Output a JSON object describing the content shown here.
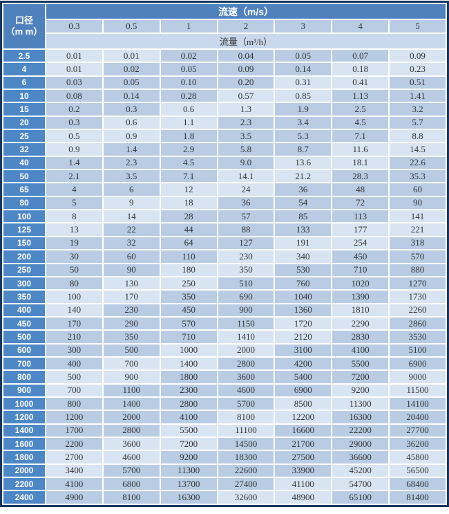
{
  "colors": {
    "outer_border": "#17375e",
    "header_blue": "#4f81bd",
    "row_header_blue": "#4e87c5",
    "cell_light_blue": "#b9cce4",
    "cell_lighter_blue": "#d9e4f2",
    "flow_band_blue": "#c9d8ec",
    "grid_line": "#ffffff",
    "text_dark": "#333333",
    "text_white": "#ffffff"
  },
  "chart_data": {
    "type": "table",
    "corner_header_line1": "口径",
    "corner_header_line2": "（m m）",
    "velocity_header": "流速（m/s）",
    "flow_header": "流量（m³/h）",
    "velocity_unit": "m/s",
    "flow_unit": "m³/h",
    "velocities": [
      "0.3",
      "0.5",
      "1",
      "2",
      "3",
      "4",
      "5"
    ],
    "rows": [
      {
        "diameter": "2.5",
        "flows": [
          "0.01",
          "0.01",
          "0.02",
          "0.04",
          "0.05",
          "0.07",
          "0.09"
        ]
      },
      {
        "diameter": "4",
        "flows": [
          "0.01",
          "0.02",
          "0.05",
          "0.09",
          "0.14",
          "0.18",
          "0.23"
        ]
      },
      {
        "diameter": "6",
        "flows": [
          "0.03",
          "0.05",
          "0.10",
          "0.20",
          "0.31",
          "0.41",
          "0.51"
        ]
      },
      {
        "diameter": "10",
        "flows": [
          "0.08",
          "0.14",
          "0.28",
          "0.57",
          "0.85",
          "1.13",
          "1.41"
        ]
      },
      {
        "diameter": "15",
        "flows": [
          "0.2",
          "0.3",
          "0.6",
          "1.3",
          "1.9",
          "2.5",
          "3.2"
        ]
      },
      {
        "diameter": "20",
        "flows": [
          "0.3",
          "0.6",
          "1.1",
          "2.3",
          "3.4",
          "4.5",
          "5.7"
        ]
      },
      {
        "diameter": "25",
        "flows": [
          "0.5",
          "0.9",
          "1.8",
          "3.5",
          "5.3",
          "7.1",
          "8.8"
        ]
      },
      {
        "diameter": "32",
        "flows": [
          "0.9",
          "1.4",
          "2.9",
          "5.8",
          "8.7",
          "11.6",
          "14.5"
        ]
      },
      {
        "diameter": "40",
        "flows": [
          "1.4",
          "2.3",
          "4.5",
          "9.0",
          "13.6",
          "18.1",
          "22.6"
        ]
      },
      {
        "diameter": "50",
        "flows": [
          "2.1",
          "3.5",
          "7.1",
          "14.1",
          "21.2",
          "28.3",
          "35.3"
        ]
      },
      {
        "diameter": "65",
        "flows": [
          "4",
          "6",
          "12",
          "24",
          "36",
          "48",
          "60"
        ]
      },
      {
        "diameter": "80",
        "flows": [
          "5",
          "9",
          "18",
          "36",
          "54",
          "72",
          "90"
        ]
      },
      {
        "diameter": "100",
        "flows": [
          "8",
          "14",
          "28",
          "57",
          "85",
          "113",
          "141"
        ]
      },
      {
        "diameter": "125",
        "flows": [
          "13",
          "22",
          "44",
          "88",
          "133",
          "177",
          "221"
        ]
      },
      {
        "diameter": "150",
        "flows": [
          "19",
          "32",
          "64",
          "127",
          "191",
          "254",
          "318"
        ]
      },
      {
        "diameter": "200",
        "flows": [
          "30",
          "60",
          "110",
          "230",
          "340",
          "450",
          "570"
        ]
      },
      {
        "diameter": "250",
        "flows": [
          "50",
          "90",
          "180",
          "350",
          "530",
          "710",
          "880"
        ]
      },
      {
        "diameter": "300",
        "flows": [
          "80",
          "130",
          "250",
          "510",
          "760",
          "1020",
          "1270"
        ]
      },
      {
        "diameter": "350",
        "flows": [
          "100",
          "170",
          "350",
          "690",
          "1040",
          "1390",
          "1730"
        ]
      },
      {
        "diameter": "400",
        "flows": [
          "140",
          "230",
          "450",
          "900",
          "1360",
          "1810",
          "2260"
        ]
      },
      {
        "diameter": "450",
        "flows": [
          "170",
          "290",
          "570",
          "1150",
          "1720",
          "2290",
          "2860"
        ]
      },
      {
        "diameter": "500",
        "flows": [
          "210",
          "350",
          "710",
          "1410",
          "2120",
          "2830",
          "3530"
        ]
      },
      {
        "diameter": "600",
        "flows": [
          "300",
          "500",
          "1000",
          "2000",
          "3100",
          "4100",
          "5100"
        ]
      },
      {
        "diameter": "700",
        "flows": [
          "400",
          "700",
          "1400",
          "2800",
          "4200",
          "5500",
          "6900"
        ]
      },
      {
        "diameter": "800",
        "flows": [
          "500",
          "900",
          "1800",
          "3600",
          "5400",
          "7200",
          "9000"
        ]
      },
      {
        "diameter": "900",
        "flows": [
          "700",
          "1100",
          "2300",
          "4600",
          "6900",
          "9200",
          "11500"
        ]
      },
      {
        "diameter": "1000",
        "flows": [
          "800",
          "1400",
          "2800",
          "5700",
          "8500",
          "11300",
          "14100"
        ]
      },
      {
        "diameter": "1200",
        "flows": [
          "1200",
          "2000",
          "4100",
          "8100",
          "12200",
          "16300",
          "20400"
        ]
      },
      {
        "diameter": "1400",
        "flows": [
          "1700",
          "2800",
          "5500",
          "11100",
          "16600",
          "22200",
          "27700"
        ]
      },
      {
        "diameter": "1600",
        "flows": [
          "2200",
          "3600",
          "7200",
          "14500",
          "21700",
          "29000",
          "36200"
        ]
      },
      {
        "diameter": "1800",
        "flows": [
          "2700",
          "4600",
          "9200",
          "18300",
          "27500",
          "36600",
          "45800"
        ]
      },
      {
        "diameter": "2000",
        "flows": [
          "3400",
          "5700",
          "11300",
          "22600",
          "33900",
          "45200",
          "56500"
        ]
      },
      {
        "diameter": "2200",
        "flows": [
          "4100",
          "6800",
          "13700",
          "27400",
          "41100",
          "54700",
          "68400"
        ]
      },
      {
        "diameter": "2400",
        "flows": [
          "4900",
          "8100",
          "16300",
          "32600",
          "48900",
          "65100",
          "81400"
        ]
      }
    ]
  }
}
